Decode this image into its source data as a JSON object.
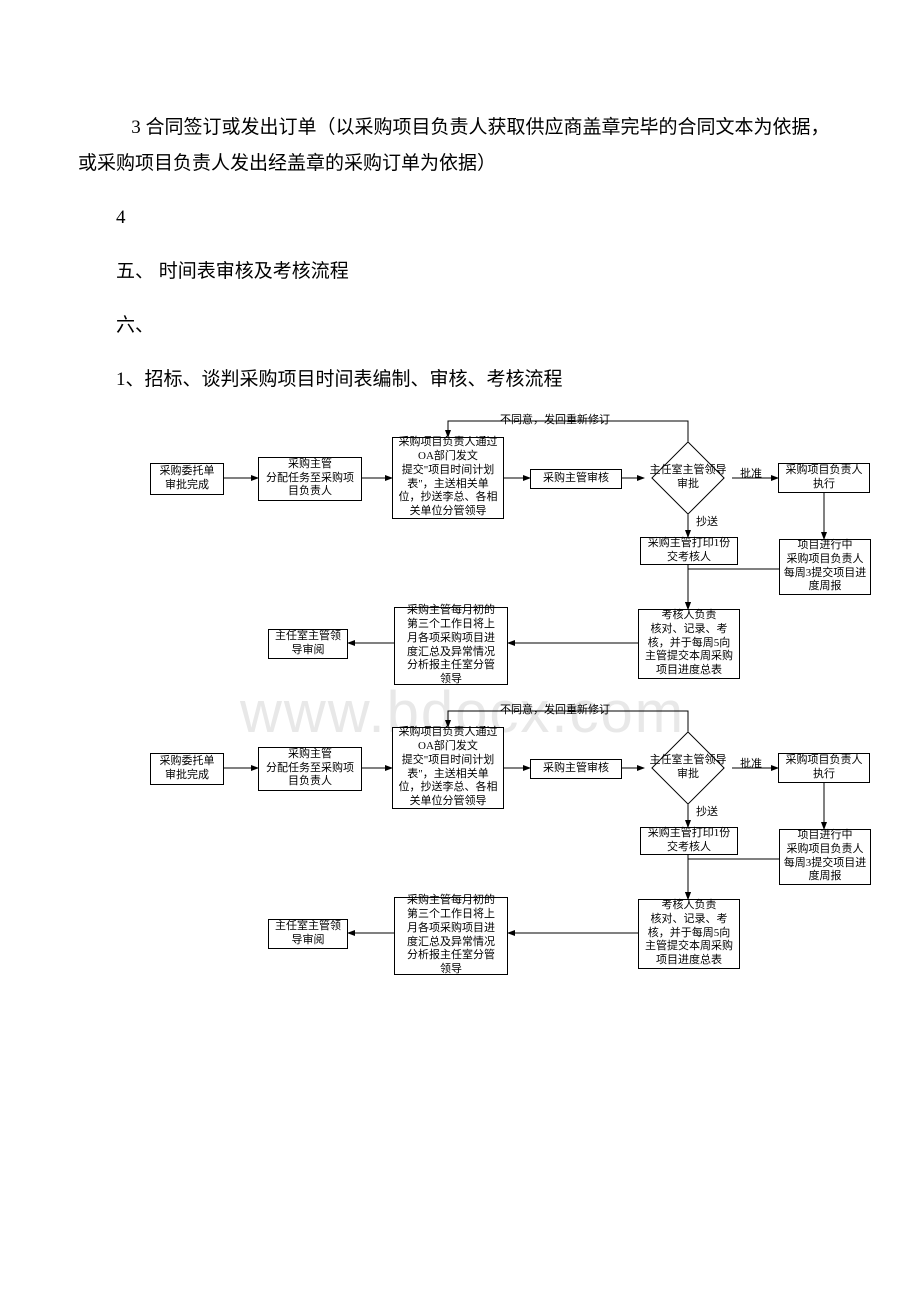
{
  "text": {
    "p1": "3 合同签订或发出订单（以采购项目负责人获取供应商盖章完毕的合同文本为依据，或采购项目负责人发出经盖章的采购订单为依据）",
    "p2": "4",
    "p3": "五、 时间表审核及考核流程",
    "p4": "六、",
    "p5": "1、招标、谈判采购项目时间表编制、审核、考核流程"
  },
  "flow": {
    "n1": "采购委托单\n审批完成",
    "n2": "采购主管\n分配任务至采购项\n目负责人",
    "n3": "采购项目负责人通过\nOA部门发文\n提交\"项目时间计划\n表\"，主送相关单\n位，抄送李总、各相\n关单位分管领导",
    "n4": "采购主管审核",
    "d1": "主任室主管领导\n审批",
    "n5": "采购项目负责人\n执行",
    "n6": "采购主管打印1份\n交考核人",
    "n7": "项目进行中\n采购项目负责人\n每周3提交项目进\n度周报",
    "n8": "考核人负责\n核对、记录、考\n核，并于每周5向\n主管提交本周采购\n项目进度总表",
    "n9": "采购主管每月初的\n第三个工作日将上\n月各项采购项目进\n度汇总及异常情况\n分析报主任室分管\n领导",
    "n10": "主任室主管领\n导审阅",
    "lbl_reject": "不同意，发回重新修订",
    "lbl_approve": "批准",
    "lbl_cc": "抄送"
  },
  "watermark": "www.bdocx.com",
  "colors": {
    "line": "#000000",
    "bg": "#ffffff",
    "wm": "#e8e8e8"
  }
}
